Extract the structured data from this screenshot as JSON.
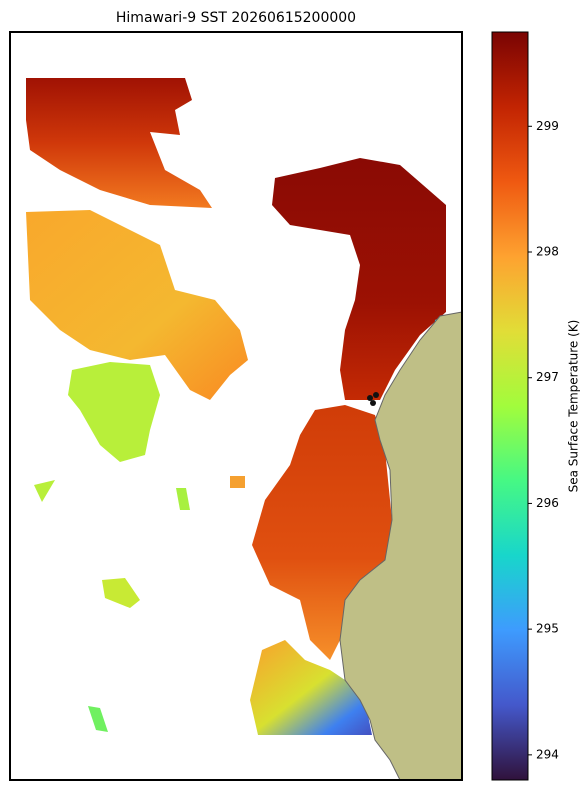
{
  "map": {
    "title": "Himawari-9 SST 20260615200000",
    "colorbar": {
      "label": "Sea Surface Temperature (K)",
      "lim": [
        293.8,
        299.75
      ],
      "ticks": [
        294,
        295,
        296,
        297,
        298,
        299
      ],
      "colormap": "turbo"
    }
  }
}
